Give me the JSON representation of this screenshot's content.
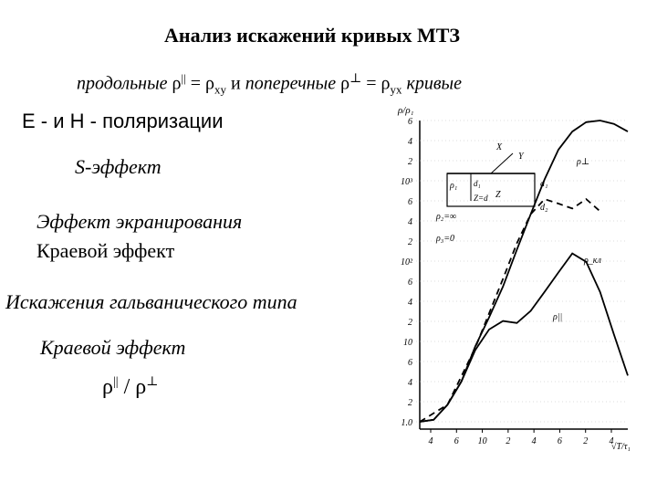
{
  "slide": {
    "title": "Анализ искажений кривых МТЗ",
    "subtitle": {
      "longitudinal": "продольные",
      "rho_par": "ρ",
      "par_sup": "||",
      "eq1": "= ρ",
      "xy": "xy",
      "and": "и",
      "transverse": "поперечные",
      "rho_perp": "ρ",
      "perp_sup": "⊥",
      "eq2": "= ρ",
      "yx": "yx",
      "curves": "кривые"
    },
    "lines": {
      "polarization": "Е - и Н - поляризации",
      "s_effect": "S-эффект",
      "screening": "Эффект экранирования",
      "edge": "Краевой эффект",
      "galvanic": "Искажения гальванического типа",
      "edge_italic": "Краевой   эффект"
    },
    "ratio": {
      "a": "ρ",
      "a_sup": "||",
      "slash": "/ ρ",
      "b_sup": "⊥"
    }
  },
  "chart_data": {
    "type": "line",
    "title": "",
    "ylabel": "ρ/ρ₁",
    "xlabel": "√T/τ₁",
    "x_ticks": [
      "4",
      "6",
      "10",
      "2",
      "4",
      "6",
      "2",
      "4"
    ],
    "y_ticks": [
      "6",
      "4",
      "2",
      "10³",
      "6",
      "4",
      "2",
      "10²",
      "6",
      "4",
      "2",
      "10",
      "6",
      "4",
      "2",
      "1.0"
    ],
    "series": [
      {
        "name": "ρ⊥",
        "style": "solid",
        "points": [
          [
            0,
            1
          ],
          [
            1,
            1.05
          ],
          [
            2,
            1.5
          ],
          [
            3,
            2.6
          ],
          [
            4,
            6
          ],
          [
            5,
            12
          ],
          [
            6,
            25
          ],
          [
            7,
            60
          ],
          [
            8,
            140
          ],
          [
            9,
            320
          ],
          [
            10,
            650
          ],
          [
            11,
            1000
          ],
          [
            12,
            1250
          ],
          [
            13,
            1300
          ],
          [
            14,
            1200
          ],
          [
            15,
            1000
          ]
        ]
      },
      {
        "name": "ρ||",
        "style": "solid",
        "points": [
          [
            0,
            1
          ],
          [
            1,
            1.05
          ],
          [
            2,
            1.5
          ],
          [
            3,
            2.6
          ],
          [
            4,
            5.5
          ],
          [
            5,
            9
          ],
          [
            6,
            11
          ],
          [
            7,
            10.5
          ],
          [
            8,
            14
          ],
          [
            9,
            22
          ],
          [
            10,
            35
          ],
          [
            11,
            55
          ],
          [
            12,
            45
          ],
          [
            13,
            22
          ],
          [
            14,
            8
          ],
          [
            15,
            3
          ]
        ]
      },
      {
        "name": "ρ_кл",
        "style": "dashed",
        "points": [
          [
            0,
            1
          ],
          [
            2,
            1.5
          ],
          [
            4,
            5.8
          ],
          [
            6,
            30
          ],
          [
            7,
            70
          ],
          [
            8,
            140
          ],
          [
            9,
            200
          ],
          [
            10,
            180
          ],
          [
            11,
            160
          ],
          [
            12,
            200
          ],
          [
            13,
            150
          ]
        ]
      }
    ],
    "inset_labels": [
      "X",
      "Y",
      "Z",
      "ρ₁",
      "d₁",
      "Z=d",
      "ρ₂=∞",
      "ρ₃=0",
      "d₁",
      "d₂"
    ]
  }
}
